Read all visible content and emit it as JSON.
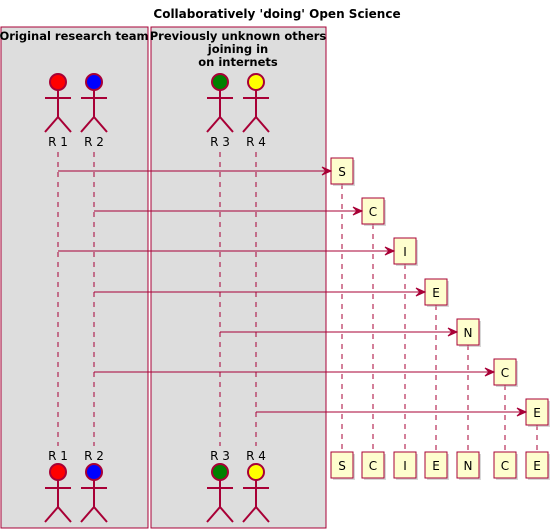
{
  "title": "Collaboratively 'doing' Open Science",
  "boxes": [
    {
      "lines": [
        "Original research team"
      ]
    },
    {
      "lines": [
        "Previously unknown others",
        "joining in",
        "on internets"
      ]
    }
  ],
  "actors": [
    {
      "name": "R 1",
      "color": "#ff0000"
    },
    {
      "name": "R 2",
      "color": "#0000ff"
    },
    {
      "name": "R 3",
      "color": "#008000"
    },
    {
      "name": "R 4",
      "color": "#ffff00"
    }
  ],
  "participants": [
    "S",
    "C",
    "I",
    "E",
    "N",
    "C",
    "E"
  ],
  "messages": [
    {
      "from": "R 1",
      "to": 0
    },
    {
      "from": "R 2",
      "to": 1
    },
    {
      "from": "R 1",
      "to": 2
    },
    {
      "from": "R 2",
      "to": 3
    },
    {
      "from": "R 3",
      "to": 4
    },
    {
      "from": "R 2",
      "to": 5
    },
    {
      "from": "R 4",
      "to": 6
    }
  ],
  "colors": {
    "box_fill": "#dddddd",
    "box_border": "#a80036",
    "lifeline": "#a80036",
    "arrow": "#a80036",
    "participant_fill": "#fefece",
    "participant_border": "#a80036"
  }
}
